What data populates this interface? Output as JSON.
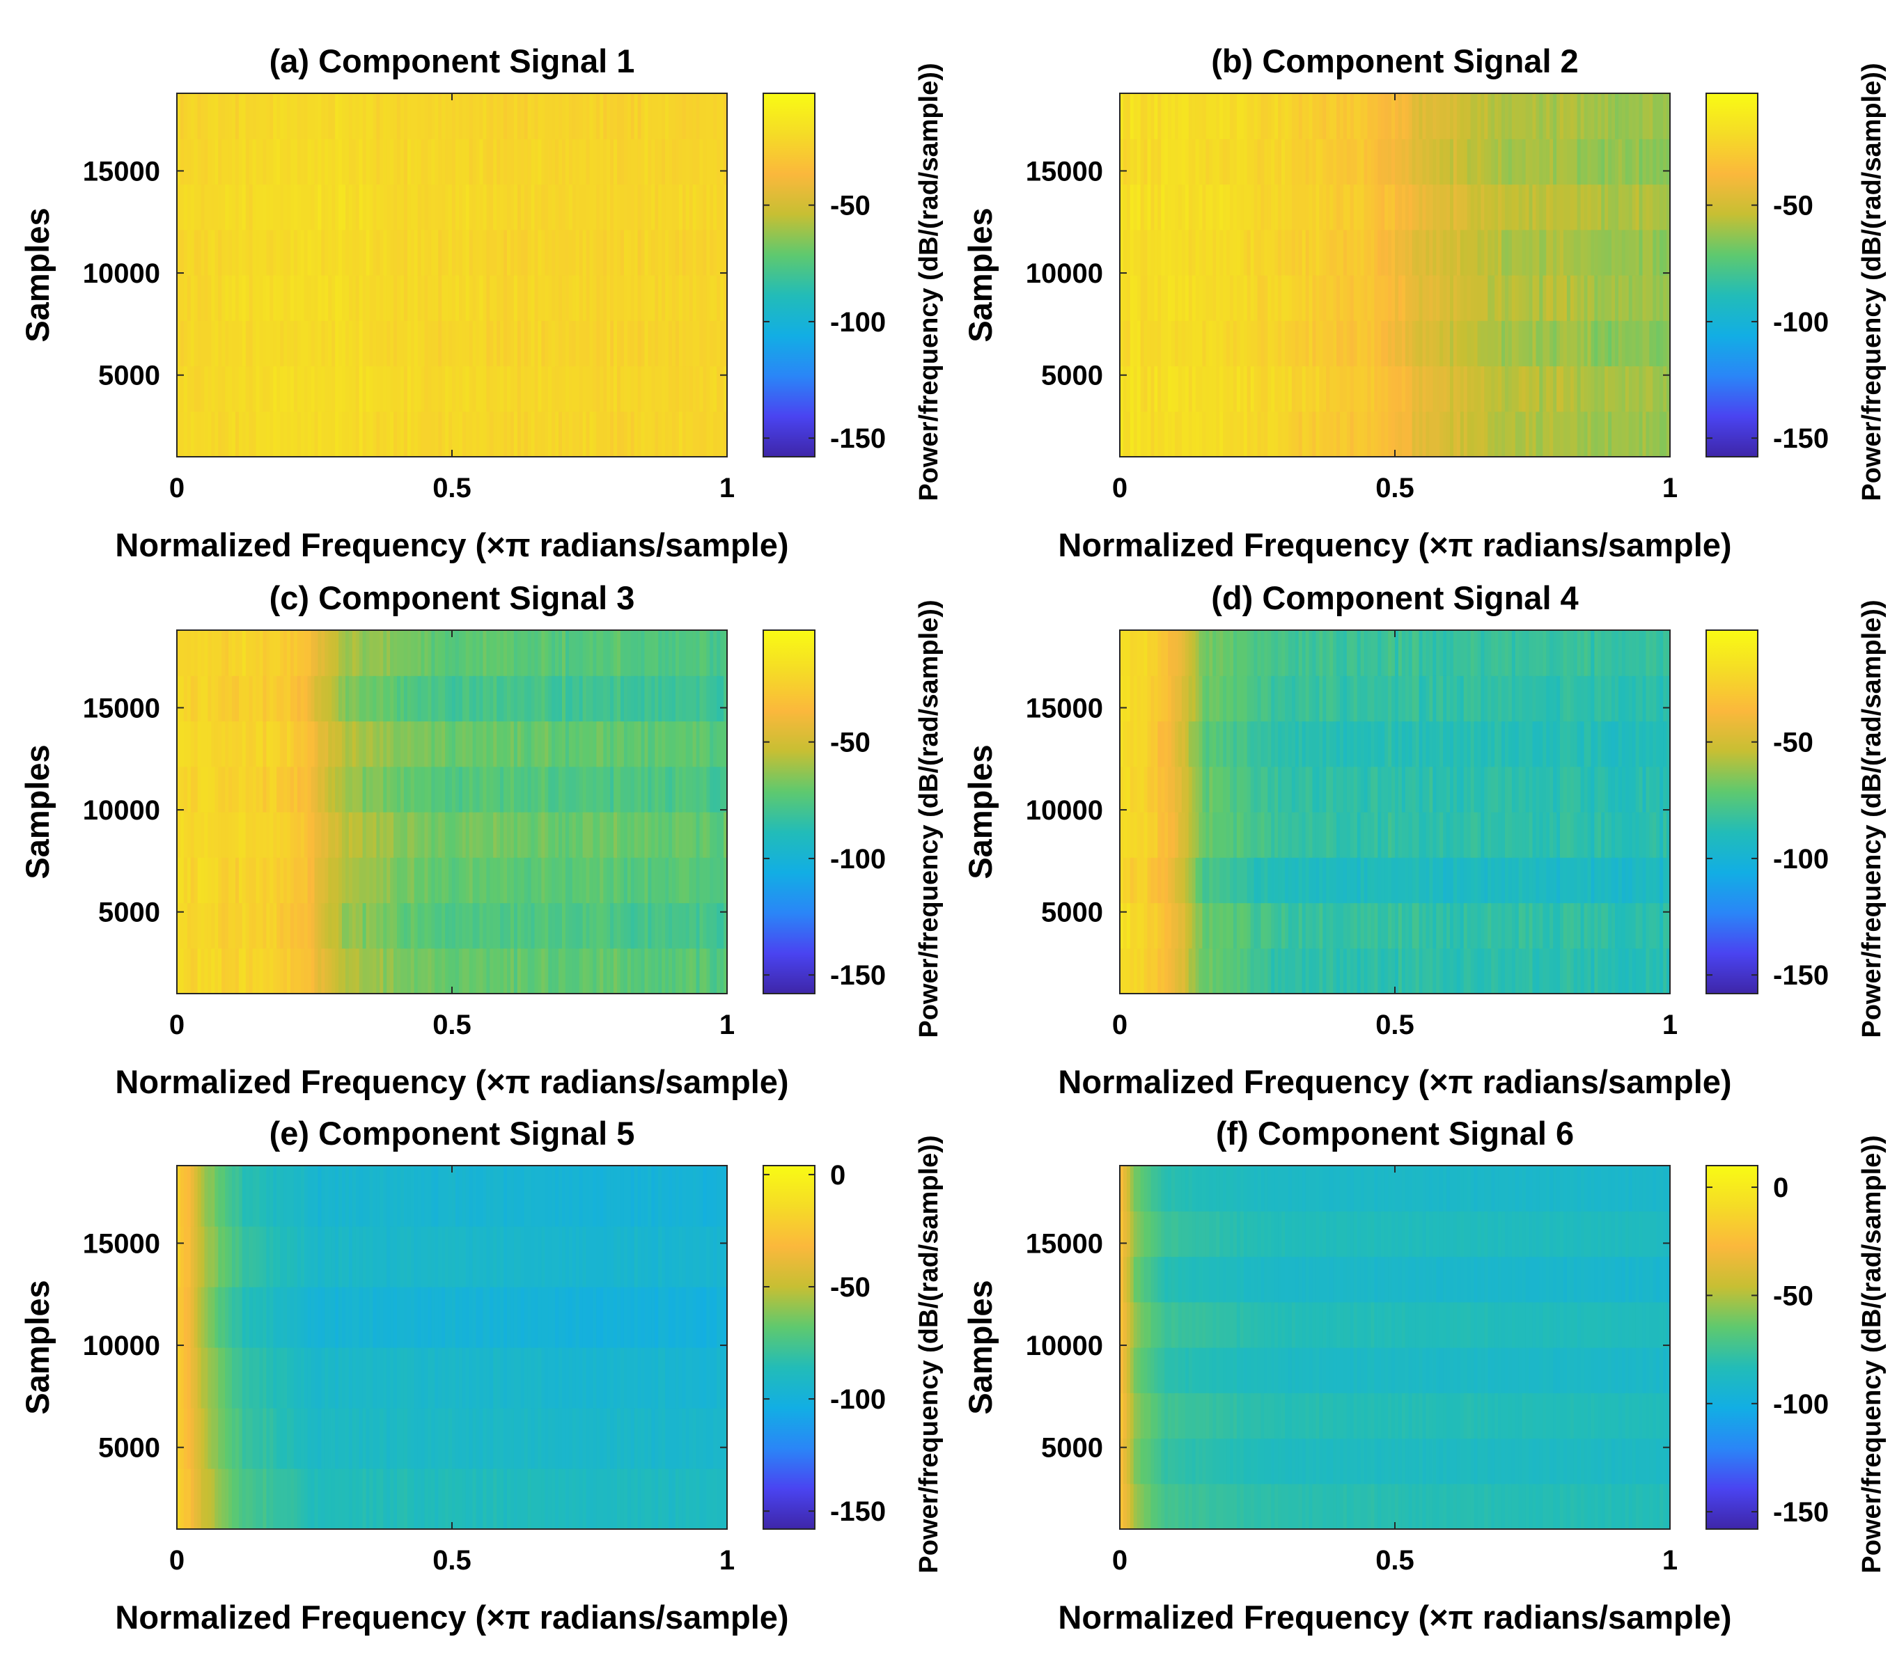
{
  "figure": {
    "type": "spectrogram-grid",
    "rows": 3,
    "cols": 2
  },
  "colormap": [
    "#3e26a8",
    "#4a44f1",
    "#2a86f7",
    "#12aee4",
    "#22bcb8",
    "#5fc96e",
    "#c7bf33",
    "#fbb83c",
    "#f5dc26",
    "#f9fb14"
  ],
  "chart_data": [
    {
      "id": "a",
      "type": "heatmap",
      "title": "(a) Component Signal 1",
      "xlabel": "Normalized Frequency (×π radians/sample)",
      "ylabel": "Samples",
      "colorbar_label": "Power/frequency (dB/(rad/sample))",
      "xlim": [
        0,
        1
      ],
      "ylim": [
        1000,
        18800
      ],
      "xticks": [
        0,
        0.5,
        1
      ],
      "xtick_labels": [
        "0",
        "0.5",
        "1"
      ],
      "yticks": [
        5000,
        10000,
        15000
      ],
      "ytick_labels": [
        "5000",
        "10000",
        "15000"
      ],
      "clim": [
        -158,
        -2
      ],
      "cticks": [
        -50,
        -100,
        -150
      ],
      "ctick_labels": [
        "-50",
        "-100",
        "-150"
      ],
      "time_segments": 8,
      "profile_freq": [
        0,
        0.25,
        0.5,
        0.75,
        1.0
      ],
      "profile_db": [
        -22,
        -19,
        -22,
        -23,
        -23
      ],
      "segment_offsets_db": [
        0,
        2,
        -2,
        1,
        -1,
        2,
        0,
        -2
      ],
      "stripe_variation_db": 4
    },
    {
      "id": "b",
      "type": "heatmap",
      "title": "(b) Component Signal 2",
      "xlabel": "Normalized Frequency (×π radians/sample)",
      "ylabel": "Samples",
      "colorbar_label": "Power/frequency (dB/(rad/sample))",
      "xlim": [
        0,
        1
      ],
      "ylim": [
        1000,
        18800
      ],
      "xticks": [
        0,
        0.5,
        1
      ],
      "xtick_labels": [
        "0",
        "0.5",
        "1"
      ],
      "yticks": [
        5000,
        10000,
        15000
      ],
      "ytick_labels": [
        "5000",
        "10000",
        "15000"
      ],
      "clim": [
        -158,
        -2
      ],
      "cticks": [
        -50,
        -100,
        -150
      ],
      "ctick_labels": [
        "-50",
        "-100",
        "-150"
      ],
      "time_segments": 8,
      "profile_freq": [
        0,
        0.2,
        0.45,
        0.55,
        0.7,
        1.0
      ],
      "profile_db": [
        -18,
        -20,
        -30,
        -45,
        -58,
        -62
      ],
      "segment_offsets_db": [
        0,
        2,
        -3,
        1,
        -1,
        3,
        -2,
        0
      ],
      "stripe_variation_db": 5
    },
    {
      "id": "c",
      "type": "heatmap",
      "title": "(c) Component Signal 3",
      "xlabel": "Normalized Frequency (×π radians/sample)",
      "ylabel": "Samples",
      "colorbar_label": "Power/frequency (dB/(rad/sample))",
      "xlim": [
        0,
        1
      ],
      "ylim": [
        1000,
        18800
      ],
      "xticks": [
        0,
        0.5,
        1
      ],
      "xtick_labels": [
        "0",
        "0.5",
        "1"
      ],
      "yticks": [
        5000,
        10000,
        15000
      ],
      "ytick_labels": [
        "5000",
        "10000",
        "15000"
      ],
      "clim": [
        -158,
        -2
      ],
      "cticks": [
        -50,
        -100,
        -150
      ],
      "ctick_labels": [
        "-50",
        "-100",
        "-150"
      ],
      "time_segments": 8,
      "profile_freq": [
        0,
        0.15,
        0.22,
        0.3,
        0.5,
        1.0
      ],
      "profile_db": [
        -22,
        -24,
        -30,
        -60,
        -72,
        -76
      ],
      "segment_offsets_db": [
        2,
        -3,
        1,
        4,
        -2,
        3,
        -6,
        0
      ],
      "stripe_variation_db": 5
    },
    {
      "id": "d",
      "type": "heatmap",
      "title": "(d) Component Signal 4",
      "xlabel": "Normalized Frequency (×π radians/sample)",
      "ylabel": "Samples",
      "colorbar_label": "Power/frequency (dB/(rad/sample))",
      "xlim": [
        0,
        1
      ],
      "ylim": [
        1000,
        18800
      ],
      "xticks": [
        0,
        0.5,
        1
      ],
      "xtick_labels": [
        "0",
        "0.5",
        "1"
      ],
      "yticks": [
        5000,
        10000,
        15000
      ],
      "ytick_labels": [
        "5000",
        "10000",
        "15000"
      ],
      "clim": [
        -158,
        -2
      ],
      "cticks": [
        -50,
        -100,
        -150
      ],
      "ctick_labels": [
        "-50",
        "-100",
        "-150"
      ],
      "time_segments": 8,
      "profile_freq": [
        0,
        0.06,
        0.1,
        0.15,
        0.3,
        1.0
      ],
      "profile_db": [
        -20,
        -26,
        -40,
        -70,
        -85,
        -88
      ],
      "segment_offsets_db": [
        0,
        2,
        -6,
        1,
        0,
        -2,
        2,
        4
      ],
      "stripe_variation_db": 5
    },
    {
      "id": "e",
      "type": "heatmap",
      "title": "(e) Component Signal 5",
      "xlabel": "Normalized Frequency (×π radians/sample)",
      "ylabel": "Samples",
      "colorbar_label": "Power/frequency (dB/(rad/sample))",
      "xlim": [
        0,
        1
      ],
      "ylim": [
        1000,
        18800
      ],
      "xticks": [
        0,
        0.5,
        1
      ],
      "xtick_labels": [
        "0",
        "0.5",
        "1"
      ],
      "yticks": [
        5000,
        10000,
        15000
      ],
      "ytick_labels": [
        "5000",
        "10000",
        "15000"
      ],
      "clim": [
        -158,
        4
      ],
      "cticks": [
        0,
        -50,
        -100,
        -150
      ],
      "ctick_labels": [
        "0",
        "-50",
        "-100",
        "-150"
      ],
      "time_segments": 6,
      "profile_freq": [
        0,
        0.02,
        0.05,
        0.12,
        0.25,
        1.0
      ],
      "profile_db": [
        -20,
        -30,
        -55,
        -80,
        -92,
        -96
      ],
      "segment_offsets_db": [
        6,
        2,
        0,
        -5,
        0,
        -3
      ],
      "stripe_variation_db": 3
    },
    {
      "id": "f",
      "type": "heatmap",
      "title": "(f) Component Signal 6",
      "xlabel": "Normalized Frequency (×π radians/sample)",
      "ylabel": "Samples",
      "colorbar_label": "Power/frequency (dB/(rad/sample))",
      "xlim": [
        0,
        1
      ],
      "ylim": [
        1000,
        18800
      ],
      "xticks": [
        0,
        0.5,
        1
      ],
      "xtick_labels": [
        "0",
        "0.5",
        "1"
      ],
      "yticks": [
        5000,
        10000,
        15000
      ],
      "ytick_labels": [
        "5000",
        "10000",
        "15000"
      ],
      "clim": [
        -158,
        10
      ],
      "cticks": [
        0,
        -50,
        -100,
        -150
      ],
      "ctick_labels": [
        "0",
        "-50",
        "-100",
        "-150"
      ],
      "time_segments": 8,
      "profile_freq": [
        0,
        0.01,
        0.03,
        0.08,
        0.3,
        1.0
      ],
      "profile_db": [
        -20,
        -35,
        -60,
        -78,
        -86,
        -88
      ],
      "segment_offsets_db": [
        5,
        0,
        4,
        -2,
        3,
        -4,
        2,
        -3
      ],
      "stripe_variation_db": 2
    }
  ]
}
